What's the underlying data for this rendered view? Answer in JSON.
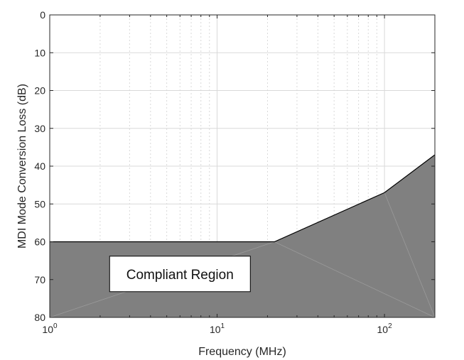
{
  "chart_data": {
    "type": "area",
    "title": "",
    "xlabel": "Frequency (MHz)",
    "ylabel": "MDI Mode Conversion Loss (dB)",
    "x_scale": "log",
    "xlim": [
      1,
      200
    ],
    "ylim": [
      0,
      80
    ],
    "y_reversed": true,
    "y_ticks": [
      0,
      10,
      20,
      30,
      40,
      50,
      60,
      70,
      80
    ],
    "x_ticks": [
      {
        "value": 1,
        "base": "10",
        "exp": "0"
      },
      {
        "value": 10,
        "base": "10",
        "exp": "1"
      },
      {
        "value": 100,
        "base": "10",
        "exp": "2"
      }
    ],
    "grid": true,
    "limit_line": {
      "x": [
        1,
        22,
        100,
        200
      ],
      "y": [
        60,
        60,
        47,
        37
      ]
    },
    "annotations": [
      {
        "text": "Compliant Region",
        "x": 6,
        "y": 68.5
      }
    ],
    "colors": {
      "fill": "#808080",
      "limit_line": "#000000",
      "mesh_line": "#9a9a9a",
      "grid": "#d9d9d9",
      "axis": "#262626"
    }
  }
}
